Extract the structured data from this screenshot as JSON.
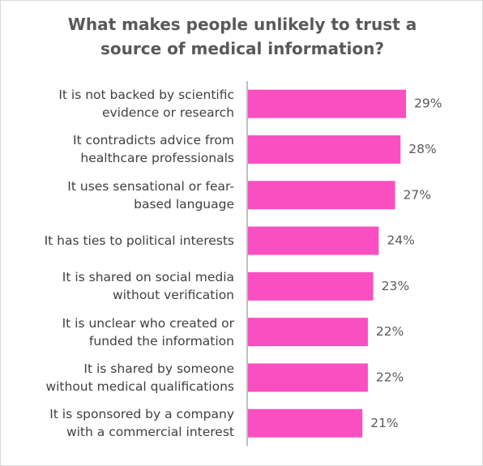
{
  "chart_data": {
    "type": "bar",
    "orientation": "horizontal",
    "title": "What makes people unlikely to trust a\nsource of medical information?",
    "categories": [
      "It is not backed by scientific\nevidence or research",
      "It contradicts advice from\nhealthcare professionals",
      "It uses sensational or fear-\nbased language",
      "It has ties to political interests",
      "It is shared on social media\nwithout verification",
      "It is unclear who created or\nfunded the information",
      "It is shared by someone\nwithout medical qualifications",
      "It is sponsored by a company\nwith a commercial interest"
    ],
    "values": [
      29,
      28,
      27,
      24,
      23,
      22,
      22,
      21
    ],
    "value_labels": [
      "29%",
      "28%",
      "27%",
      "24%",
      "23%",
      "22%",
      "22%",
      "21%"
    ],
    "color": "#fa4fc1"
  }
}
